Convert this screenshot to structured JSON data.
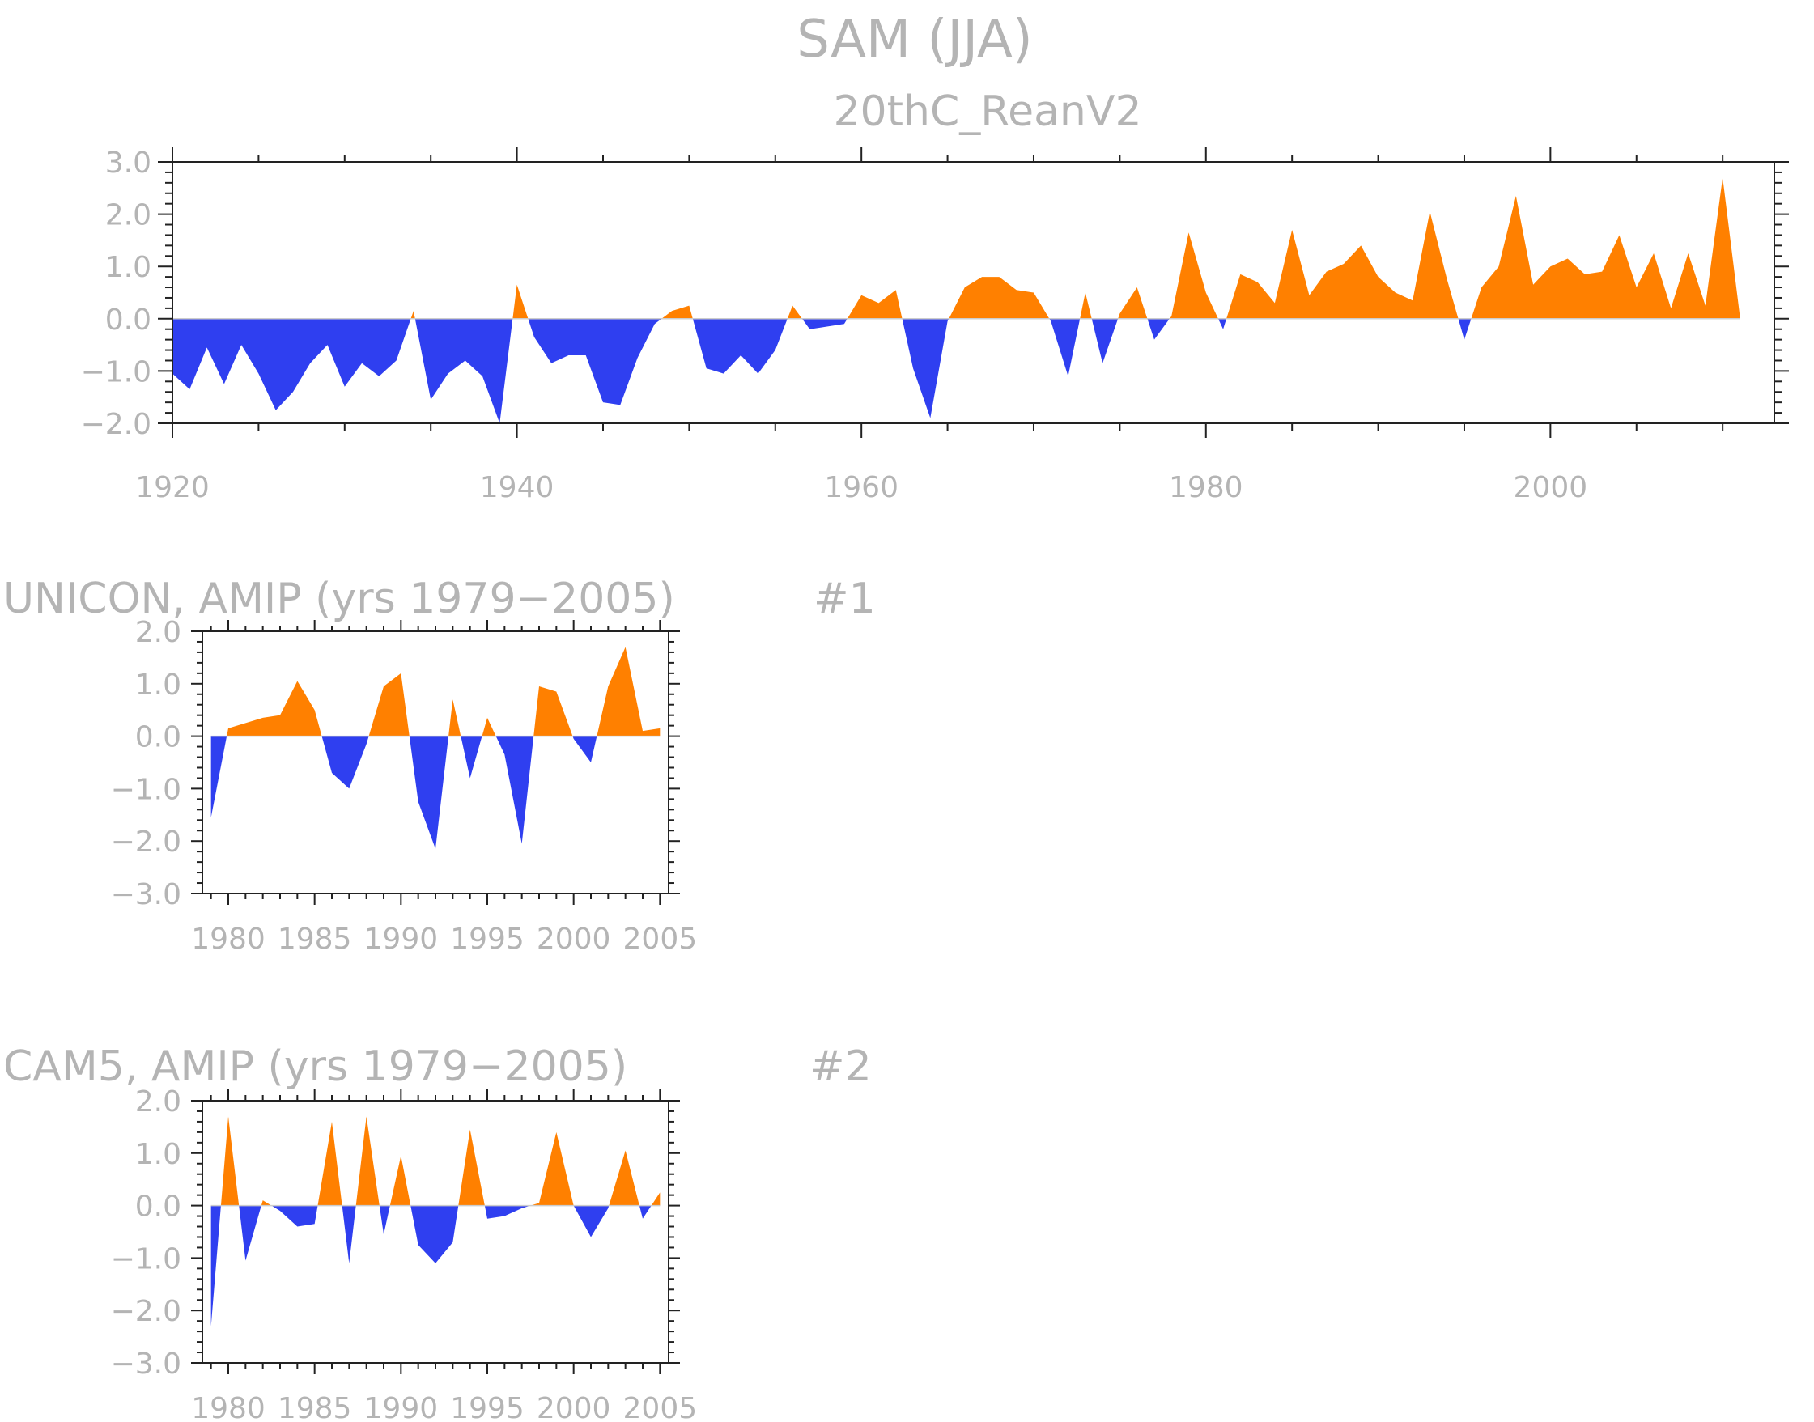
{
  "title": "SAM (JJA)",
  "subtitle": "20thC_ReanV2",
  "colors": {
    "positive": "#ff8000",
    "negative": "#2f3ff0",
    "text": "#b4b4b4",
    "axis": "#222222"
  },
  "chart_data": [
    {
      "type": "area",
      "name": "20thC_ReanV2",
      "title": "20thC_ReanV2",
      "xlabel": "",
      "ylabel": "",
      "xlim": [
        1920,
        2013
      ],
      "ylim": [
        -2.0,
        3.0
      ],
      "xticks": [
        1920,
        1940,
        1960,
        1980,
        2000
      ],
      "xtick_labels": [
        "1920",
        "1940",
        "1960",
        "1980",
        "2000"
      ],
      "yticks": [
        -2,
        -1,
        0,
        1,
        2,
        3
      ],
      "ytick_labels": [
        "−2.0",
        "−1.0",
        "0.0",
        "1.0",
        "2.0",
        "3.0"
      ],
      "x_start": 1920,
      "values": [
        -1.05,
        -1.35,
        -0.55,
        -1.25,
        -0.5,
        -1.05,
        -1.75,
        -1.4,
        -0.85,
        -0.5,
        -1.3,
        -0.85,
        -1.1,
        -0.8,
        0.15,
        -1.55,
        -1.05,
        -0.8,
        -1.1,
        -2.0,
        0.65,
        -0.35,
        -0.85,
        -0.7,
        -0.7,
        -1.6,
        -1.65,
        -0.75,
        -0.1,
        0.15,
        0.25,
        -0.95,
        -1.05,
        -0.7,
        -1.05,
        -0.6,
        0.25,
        -0.2,
        -0.15,
        -0.1,
        0.45,
        0.3,
        0.55,
        -0.95,
        -1.9,
        -0.05,
        0.6,
        0.8,
        0.8,
        0.55,
        0.5,
        -0.05,
        -1.1,
        0.5,
        -0.85,
        0.1,
        0.6,
        -0.4,
        0.05,
        1.65,
        0.5,
        -0.2,
        0.85,
        0.7,
        0.3,
        1.7,
        0.45,
        0.9,
        1.05,
        1.4,
        0.8,
        0.5,
        0.35,
        2.05,
        0.75,
        -0.4,
        0.6,
        1.0,
        2.35,
        0.65,
        1.0,
        1.15,
        0.85,
        0.9,
        1.6,
        0.6,
        1.25,
        0.2,
        1.25,
        0.25,
        2.7,
        0.05
      ]
    },
    {
      "type": "area",
      "name": "UNICON",
      "title": "UNICON, AMIP (yrs 1979−2005)",
      "panel_label": "#1",
      "xlabel": "",
      "ylabel": "",
      "xlim": [
        1978.5,
        2005.5
      ],
      "ylim": [
        -3.0,
        2.0
      ],
      "xticks": [
        1980,
        1985,
        1990,
        1995,
        2000,
        2005
      ],
      "xtick_labels": [
        "1980",
        "1985",
        "1990",
        "1995",
        "2000",
        "2005"
      ],
      "yticks": [
        -3,
        -2,
        -1,
        0,
        1,
        2
      ],
      "ytick_labels": [
        "−3.0",
        "−2.0",
        "−1.0",
        "0.0",
        "1.0",
        "2.0"
      ],
      "x_start": 1979,
      "values": [
        -1.55,
        0.15,
        0.25,
        0.35,
        0.4,
        1.05,
        0.5,
        -0.7,
        -1.0,
        -0.15,
        0.95,
        1.2,
        -1.25,
        -2.15,
        0.7,
        -0.8,
        0.35,
        -0.35,
        -2.05,
        0.95,
        0.85,
        -0.05,
        -0.5,
        0.95,
        1.7,
        0.1,
        0.15
      ]
    },
    {
      "type": "area",
      "name": "CAM5",
      "title": "CAM5, AMIP (yrs 1979−2005)",
      "panel_label": "#2",
      "xlabel": "",
      "ylabel": "",
      "xlim": [
        1978.5,
        2005.5
      ],
      "ylim": [
        -3.0,
        2.0
      ],
      "xticks": [
        1980,
        1985,
        1990,
        1995,
        2000,
        2005
      ],
      "xtick_labels": [
        "1980",
        "1985",
        "1990",
        "1995",
        "2000",
        "2005"
      ],
      "yticks": [
        -3,
        -2,
        -1,
        0,
        1,
        2
      ],
      "ytick_labels": [
        "−3.0",
        "−2.0",
        "−1.0",
        "0.0",
        "1.0",
        "2.0"
      ],
      "x_start": 1979,
      "values": [
        -2.3,
        1.7,
        -1.05,
        0.1,
        -0.1,
        -0.4,
        -0.35,
        1.6,
        -1.1,
        1.7,
        -0.55,
        0.95,
        -0.75,
        -1.1,
        -0.7,
        1.45,
        -0.25,
        -0.2,
        -0.05,
        0.05,
        1.4,
        0.0,
        -0.6,
        -0.05,
        1.05,
        -0.25,
        0.25
      ]
    }
  ]
}
